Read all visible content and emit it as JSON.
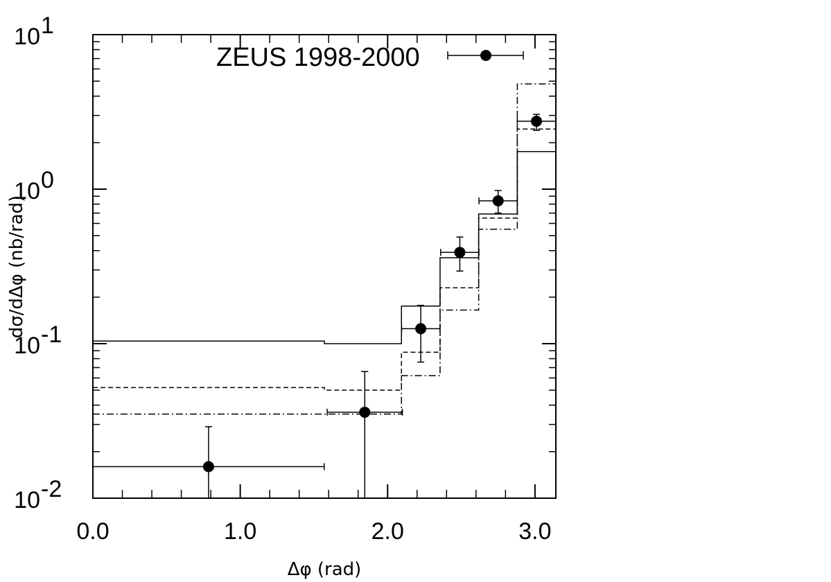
{
  "chart_data": {
    "type": "scatter",
    "title": "",
    "xlabel": "Δφ (rad)",
    "ylabel": "dσ/dΔφ (nb/rad)",
    "xlim": [
      0.0,
      3.1416
    ],
    "ylim": [
      0.01,
      10
    ],
    "y_scale": "log",
    "x_ticks": [
      "0.0",
      "1.0",
      "2.0",
      "3.0"
    ],
    "y_ticks": [
      {
        "base": "10",
        "exp": "-2"
      },
      {
        "base": "10",
        "exp": "-1"
      },
      {
        "base": "10",
        "exp": "0"
      },
      {
        "base": "10",
        "exp": "1"
      }
    ],
    "legend": {
      "label": "ZEUS 1998-2000",
      "position": "top"
    },
    "series": [
      {
        "name": "ZEUS 1998-2000",
        "style": "points",
        "x": [
          0.785,
          1.845,
          2.225,
          2.49,
          2.75,
          3.01
        ],
        "xerr_low": [
          0.785,
          0.255,
          0.13,
          0.13,
          0.13,
          0.13
        ],
        "xerr_high": [
          0.785,
          0.255,
          0.13,
          0.13,
          0.13,
          0.13
        ],
        "y": [
          0.016,
          0.036,
          0.125,
          0.39,
          0.84,
          2.75
        ],
        "yerr_low": [
          0.006,
          0.026,
          0.049,
          0.095,
          0.14,
          0.35
        ],
        "yerr_high": [
          0.013,
          0.03,
          0.052,
          0.1,
          0.14,
          0.3
        ]
      },
      {
        "style": "solid",
        "edges": [
          0.0,
          1.571,
          2.094,
          2.356,
          2.618,
          2.88,
          3.1416
        ],
        "values": [
          0.104,
          0.1,
          0.175,
          0.36,
          0.69,
          1.75
        ]
      },
      {
        "style": "dashed",
        "edges": [
          0.0,
          1.571,
          2.094,
          2.356,
          2.618,
          2.88,
          3.1416
        ],
        "values": [
          0.052,
          0.05,
          0.088,
          0.23,
          0.65,
          2.45
        ]
      },
      {
        "style": "dashdot",
        "edges": [
          0.0,
          1.571,
          2.094,
          2.356,
          2.618,
          2.88,
          3.1416
        ],
        "values": [
          0.035,
          0.035,
          0.062,
          0.165,
          0.55,
          4.8
        ]
      }
    ]
  }
}
